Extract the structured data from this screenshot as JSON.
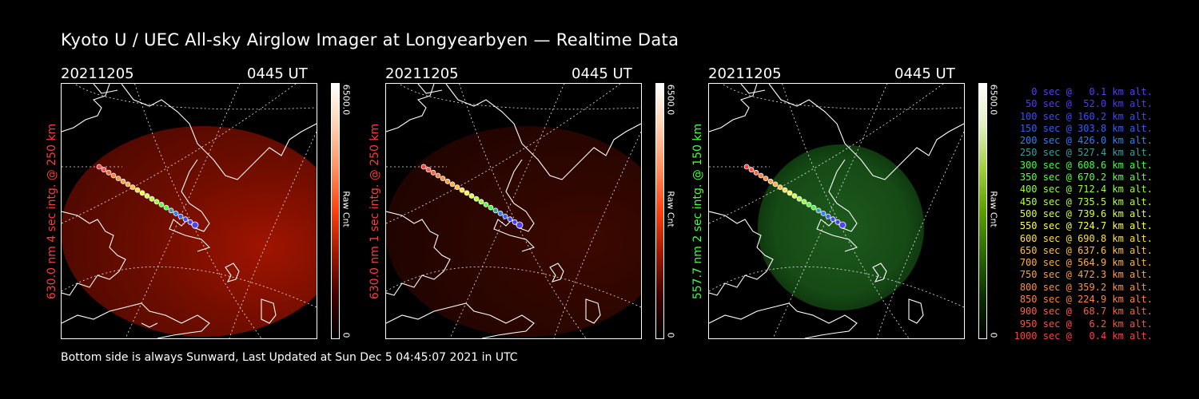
{
  "title": "Kyoto U / UEC All-sky Airglow Imager at Longyearbyen — Realtime Data",
  "footer": "Bottom side is always Sunward, Last Updated at Sun Dec  5 04:45:07 2021 in UTC",
  "panels": [
    {
      "date": "20211205",
      "time": "0445 UT",
      "side_label": "630.0 nm 4 sec intg. @ 250 km",
      "label_color": "#ff3b3b",
      "cbar_max": "6500.0",
      "cbar_unit": "Raw Cnt",
      "cbar_min": "0",
      "glow": "red",
      "glow_level": 0.9
    },
    {
      "date": "20211205",
      "time": "0445 UT",
      "side_label": "630.0 nm 1 sec intg. @ 250 km",
      "label_color": "#ff3b3b",
      "cbar_max": "6500.0",
      "cbar_unit": "Raw Cnt",
      "cbar_min": "0",
      "glow": "red",
      "glow_level": 0.35
    },
    {
      "date": "20211205",
      "time": "0445 UT",
      "side_label": "557.7 nm 2 sec intg. @ 150 km",
      "label_color": "#44ff44",
      "cbar_max": "6500.0",
      "cbar_unit": "Raw Cnt",
      "cbar_min": "0",
      "glow": "green",
      "glow_level": 0.6
    }
  ],
  "legend": [
    {
      "text": "   0 sec @   0.1 km alt.",
      "color": "#5040ff"
    },
    {
      "text": "  50 sec @  52.0 km alt.",
      "color": "#4a3cff"
    },
    {
      "text": " 100 sec @ 160.2 km alt.",
      "color": "#3a4cff"
    },
    {
      "text": " 150 sec @ 303.8 km alt.",
      "color": "#3060ff"
    },
    {
      "text": " 200 sec @ 426.0 km alt.",
      "color": "#2f7fff"
    },
    {
      "text": " 250 sec @ 527.4 km alt.",
      "color": "#3aa0a0"
    },
    {
      "text": " 300 sec @ 608.6 km alt.",
      "color": "#40ff40"
    },
    {
      "text": " 350 sec @ 670.2 km alt.",
      "color": "#60ff40"
    },
    {
      "text": " 400 sec @ 712.4 km alt.",
      "color": "#90ff40"
    },
    {
      "text": " 450 sec @ 735.5 km alt.",
      "color": "#b0ff40"
    },
    {
      "text": " 500 sec @ 739.6 km alt.",
      "color": "#d8ff40"
    },
    {
      "text": " 550 sec @ 724.7 km alt.",
      "color": "#ffff40"
    },
    {
      "text": " 600 sec @ 690.8 km alt.",
      "color": "#ffe040"
    },
    {
      "text": " 650 sec @ 637.6 km alt.",
      "color": "#ffc040"
    },
    {
      "text": " 700 sec @ 564.9 km alt.",
      "color": "#ffb040"
    },
    {
      "text": " 750 sec @ 472.3 km alt.",
      "color": "#ffa040"
    },
    {
      "text": " 800 sec @ 359.2 km alt.",
      "color": "#ff9040"
    },
    {
      "text": " 850 sec @ 224.9 km alt.",
      "color": "#ff8040"
    },
    {
      "text": " 900 sec @  68.7 km alt.",
      "color": "#ff6040"
    },
    {
      "text": " 950 sec @   6.2 km alt.",
      "color": "#ff5040"
    },
    {
      "text": "1000 sec @   0.4 km alt.",
      "color": "#ff4040"
    }
  ]
}
